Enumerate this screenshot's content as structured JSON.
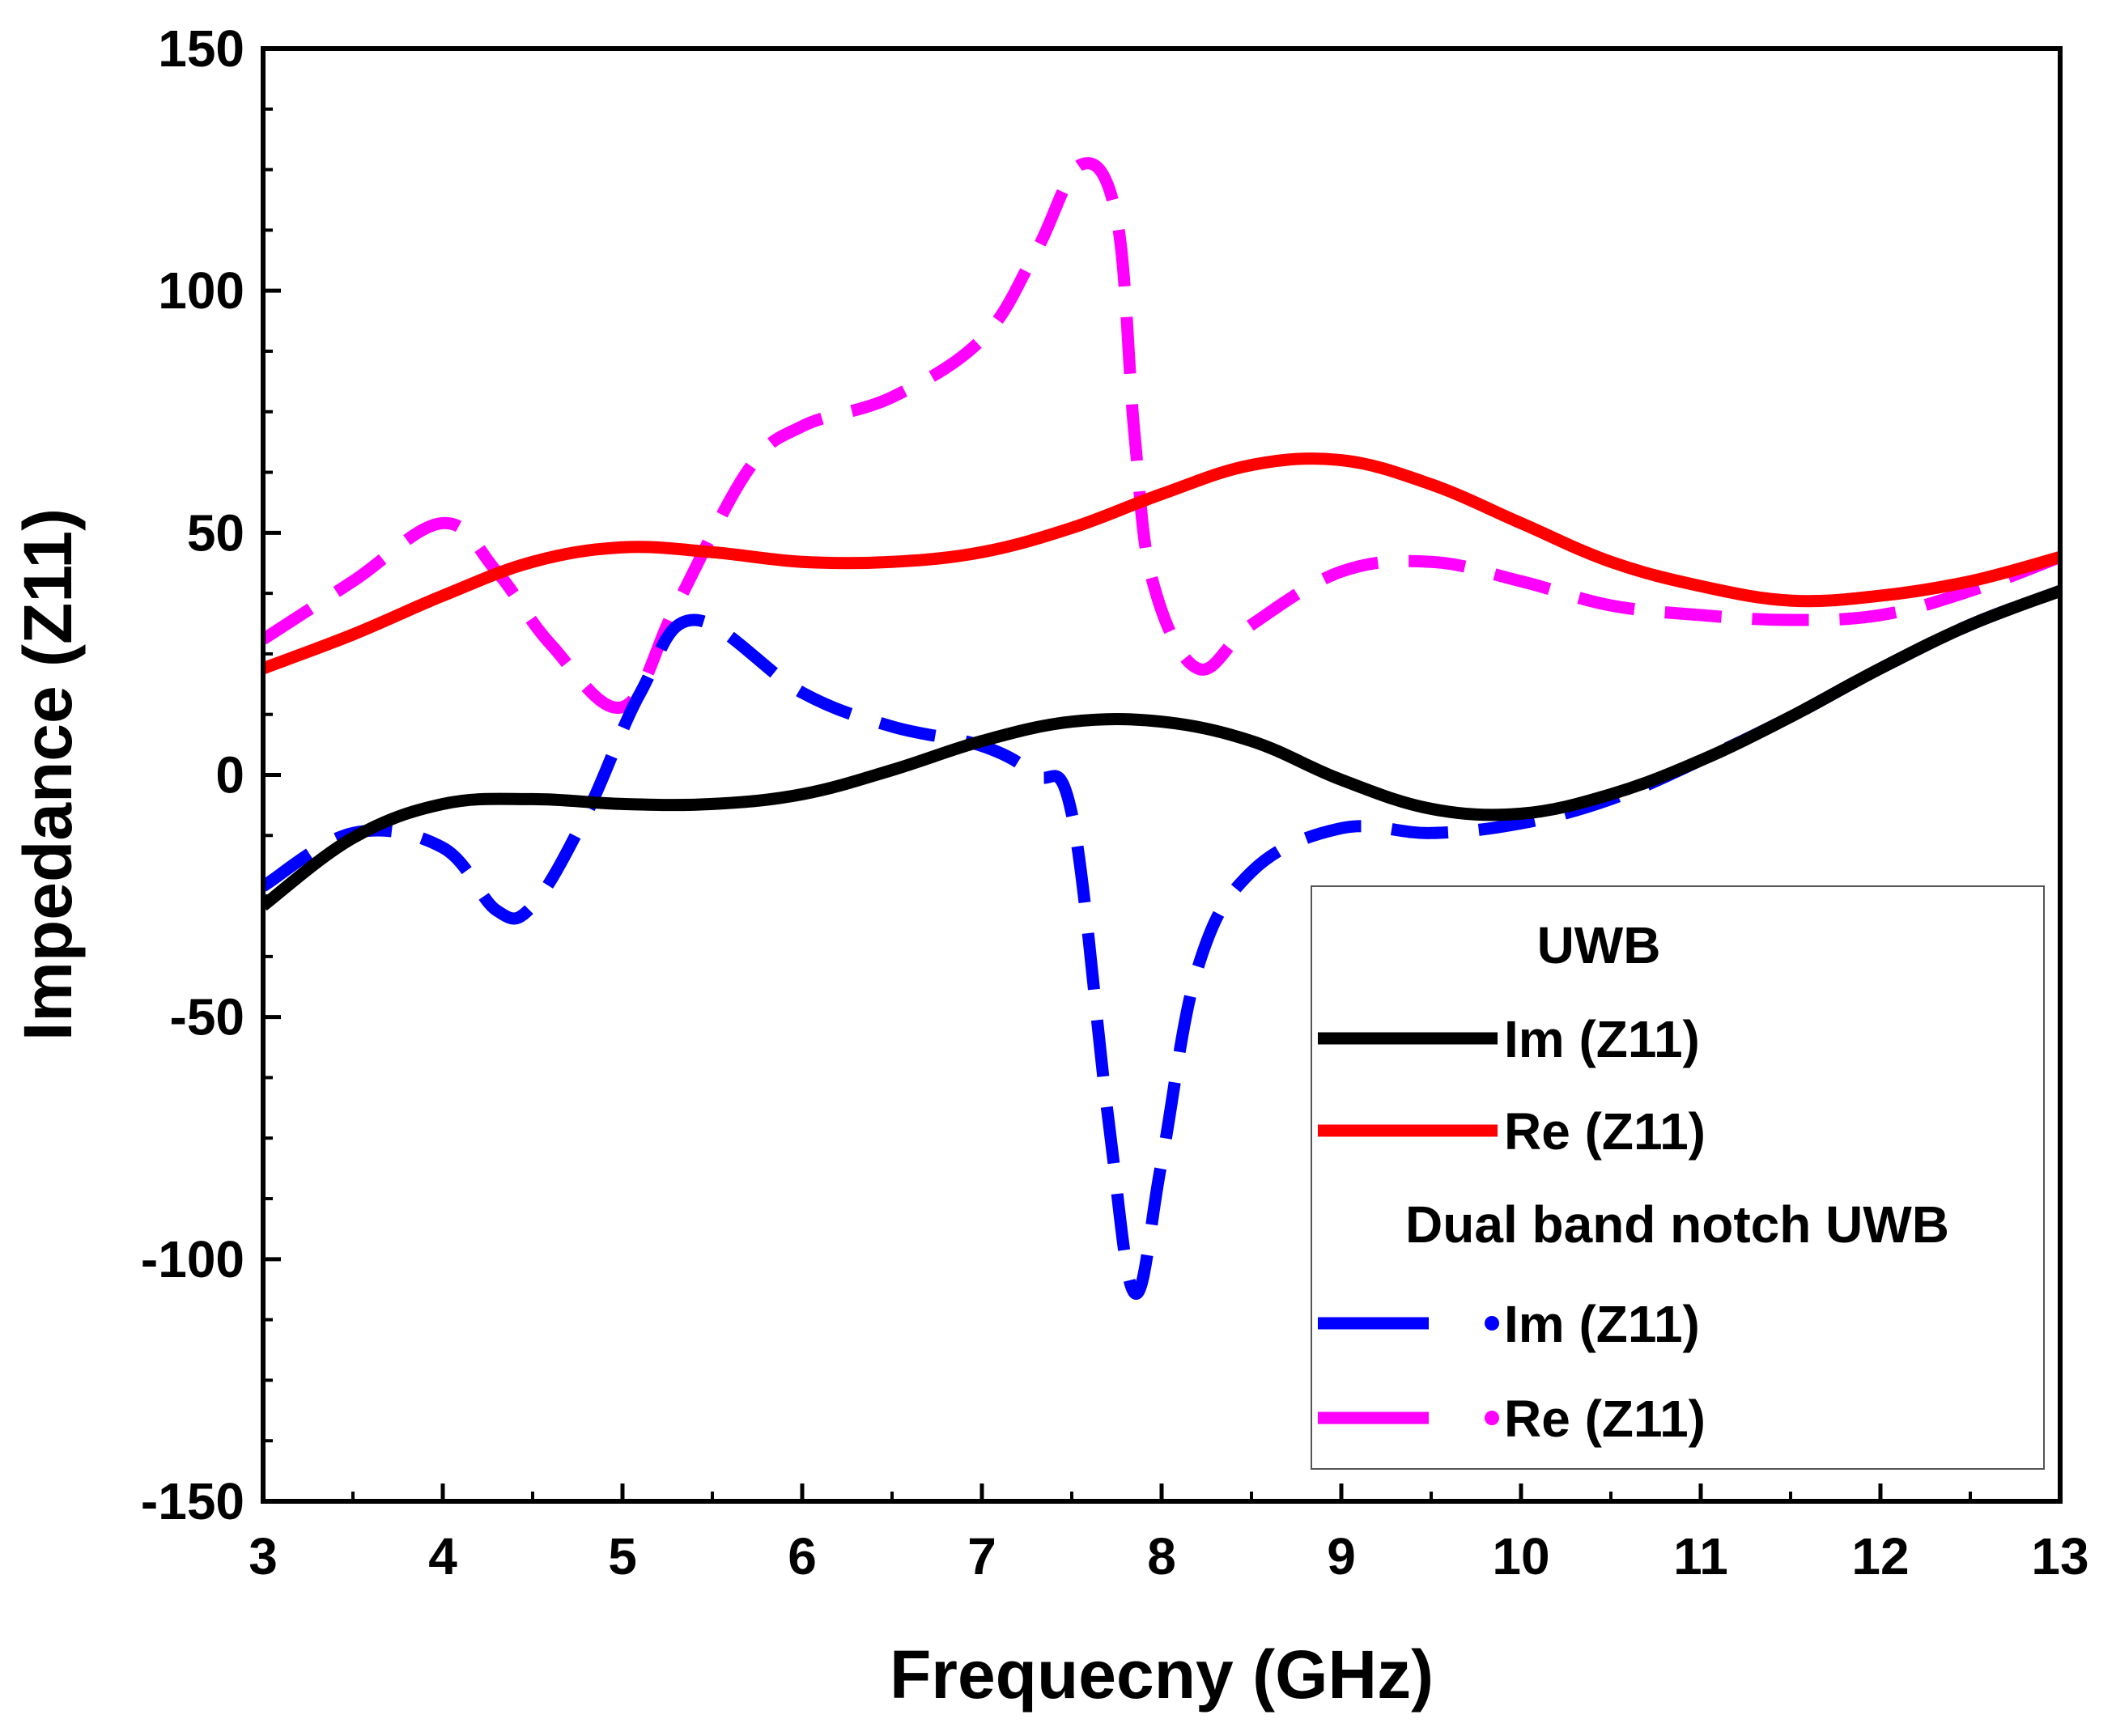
{
  "chart_data": {
    "type": "line",
    "title": "",
    "xlabel": "Frequecny (GHz)",
    "ylabel": "Impedance (Z11)",
    "xlim": [
      3,
      13
    ],
    "ylim": [
      -150,
      150
    ],
    "xticks": [
      3,
      4,
      5,
      6,
      7,
      8,
      9,
      10,
      11,
      12,
      13
    ],
    "yticks": [
      -150,
      -100,
      -50,
      0,
      50,
      100,
      150
    ],
    "grid": false,
    "legend": {
      "position": "bottom-right",
      "group_titles": [
        "UWB",
        "Dual band notch UWB"
      ],
      "entries": [
        "Im (Z11)",
        "Re (Z11)",
        "Im (Z11)",
        "Re (Z11)"
      ]
    },
    "series": [
      {
        "name": "Im (Z11)",
        "group": "UWB",
        "color": "#000000",
        "style": "solid",
        "x": [
          3,
          3.5,
          4,
          4.5,
          5,
          5.5,
          6,
          6.5,
          7,
          7.5,
          8,
          8.5,
          9,
          9.5,
          10,
          10.5,
          11,
          11.5,
          12,
          12.5,
          13
        ],
        "y": [
          -27,
          -13,
          -6,
          -5,
          -6,
          -6,
          -4,
          1,
          7,
          11,
          11,
          7,
          -1,
          -7,
          -8,
          -4,
          3,
          12,
          22,
          31,
          38
        ]
      },
      {
        "name": "Re (Z11)",
        "group": "UWB",
        "color": "#ff0000",
        "style": "solid",
        "x": [
          3,
          3.5,
          4,
          4.5,
          5,
          5.5,
          6,
          6.5,
          7,
          7.5,
          8,
          8.5,
          9,
          9.5,
          10,
          10.5,
          11,
          11.5,
          12,
          12.5,
          13
        ],
        "y": [
          22,
          29,
          37,
          44,
          47,
          46,
          44,
          44,
          46,
          51,
          58,
          64,
          65,
          60,
          52,
          44,
          39,
          36,
          37,
          40,
          45
        ]
      },
      {
        "name": "Im (Z11)",
        "group": "Dual band notch UWB",
        "color": "#0000ff",
        "style": "dashed",
        "x": [
          3,
          3.5,
          4,
          4.3,
          4.5,
          4.8,
          5.1,
          5.4,
          6,
          6.5,
          7,
          7.3,
          7.5,
          7.7,
          7.85,
          8.0,
          8.2,
          8.5,
          9,
          9.5,
          10,
          10.5,
          11,
          11.5,
          12,
          12.5,
          13
        ],
        "y": [
          -23,
          -12,
          -15,
          -28,
          -27,
          -8,
          17,
          32,
          17,
          10,
          6,
          0,
          -8,
          -70,
          -107,
          -80,
          -40,
          -20,
          -11,
          -12,
          -10,
          -5,
          3,
          12,
          22,
          31,
          38
        ]
      },
      {
        "name": "Re (Z11)",
        "group": "Dual band notch UWB",
        "color": "#ff00ff",
        "style": "dashed",
        "x": [
          3,
          3.5,
          4,
          4.3,
          4.6,
          5.0,
          5.3,
          5.7,
          6,
          6.5,
          7,
          7.3,
          7.55,
          7.75,
          7.85,
          7.95,
          8.2,
          8.5,
          9,
          9.5,
          10,
          10.5,
          11,
          11.5,
          12,
          12.5,
          13
        ],
        "y": [
          28,
          40,
          52,
          42,
          27,
          14,
          35,
          63,
          72,
          78,
          90,
          108,
          126,
          115,
          70,
          40,
          22,
          31,
          42,
          44,
          40,
          35,
          33,
          32,
          33,
          38,
          45
        ]
      }
    ]
  }
}
